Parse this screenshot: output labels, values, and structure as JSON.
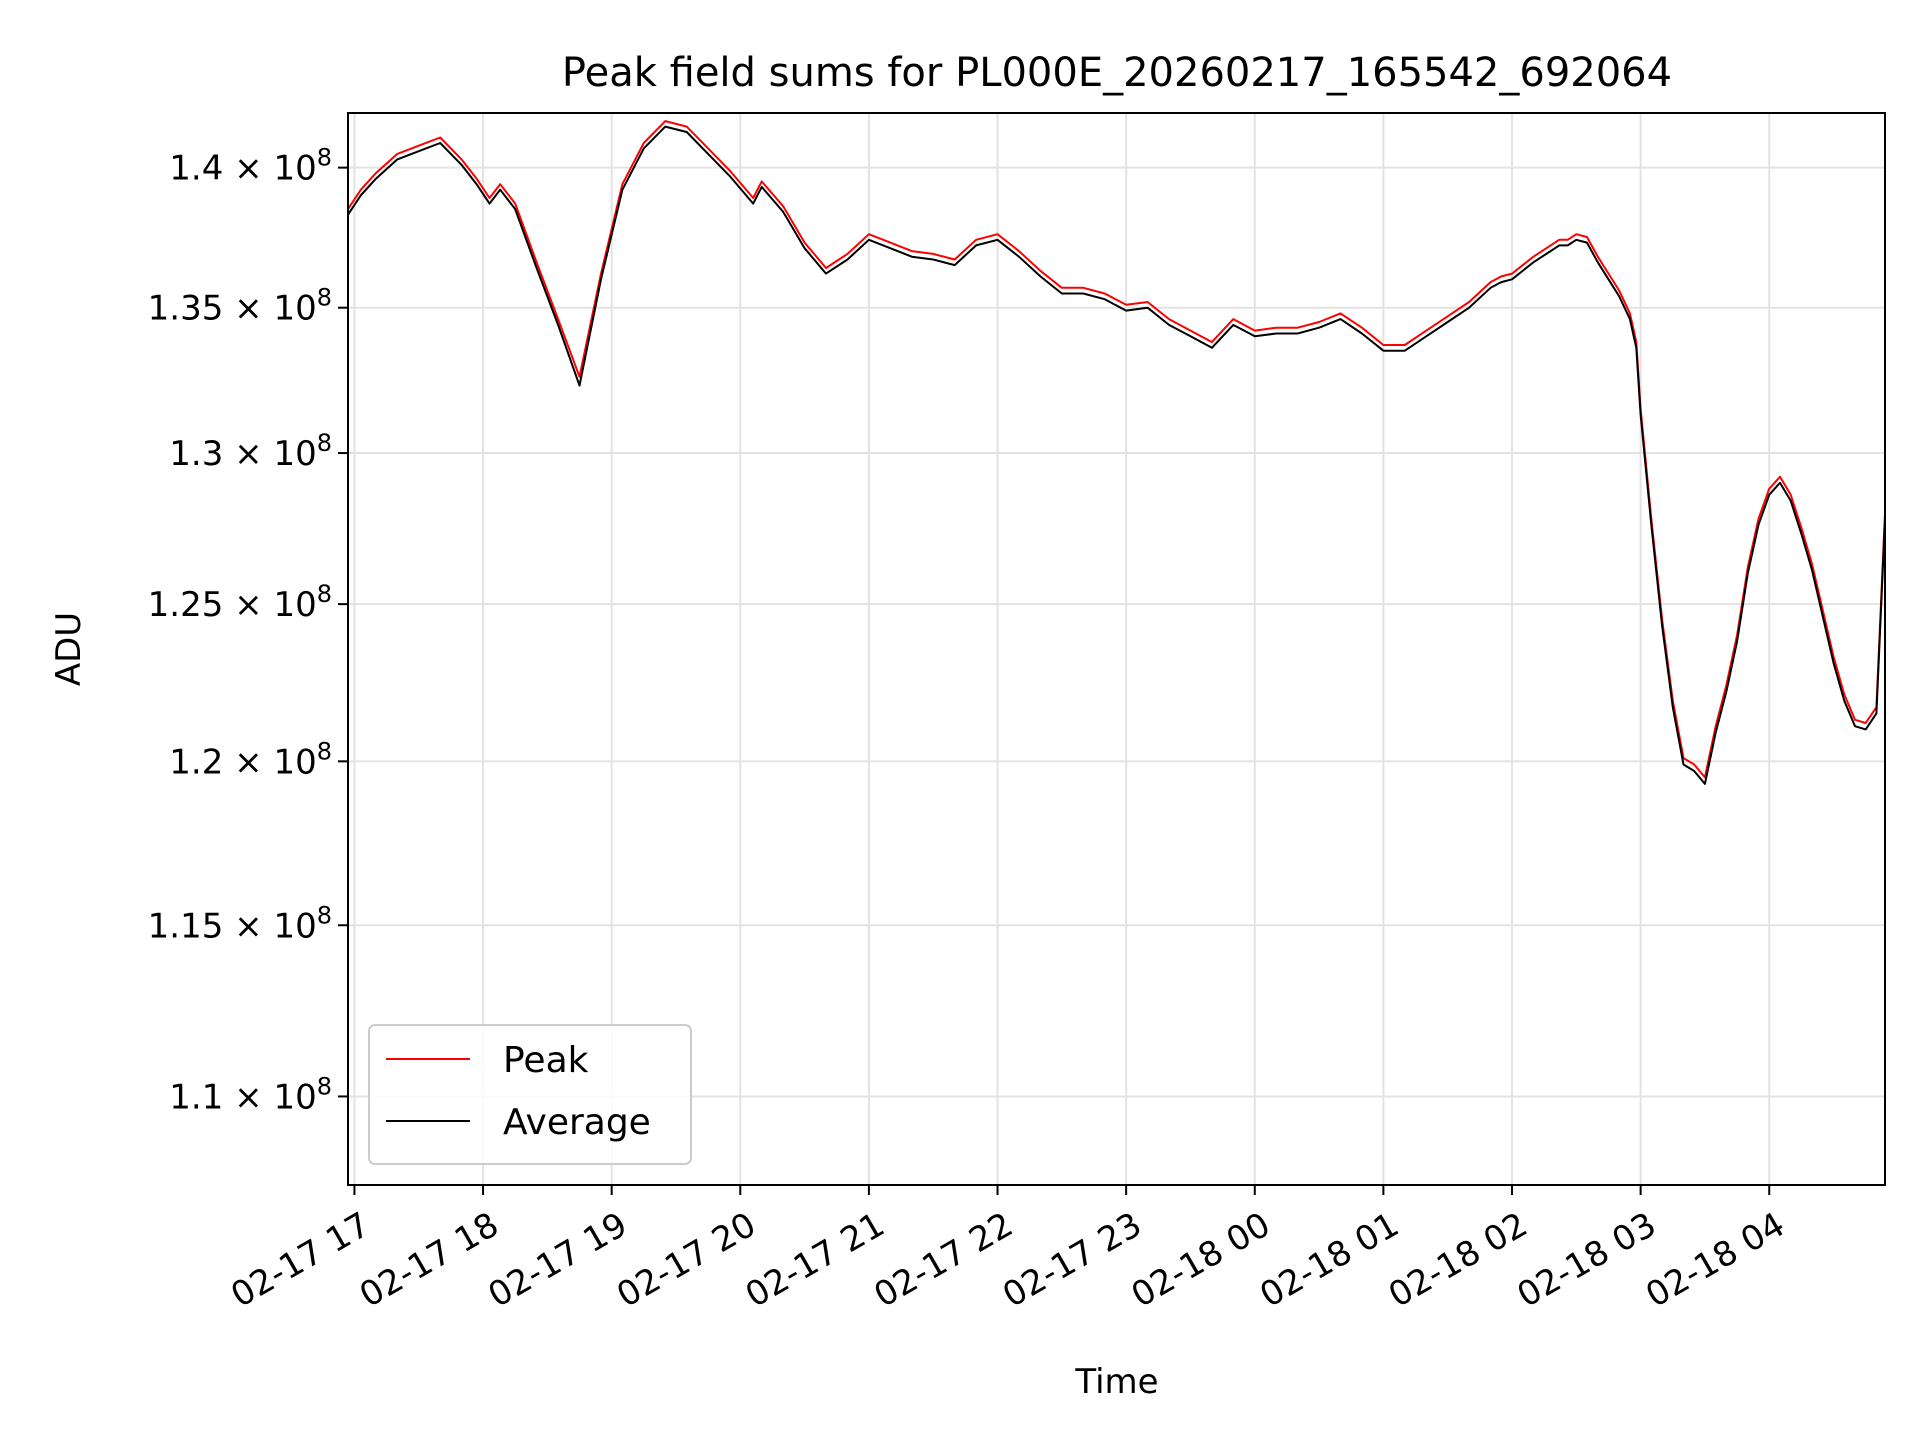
{
  "chart_data": {
    "type": "line",
    "title": "Peak field sums for PL000E_20260217_165542_692064",
    "xlabel": "Time",
    "ylabel": "ADU",
    "y_scale": "log",
    "ylim": [
      107500000,
      142000000
    ],
    "xlim": [
      "2026-02-17T16:57",
      "2026-02-18T04:54"
    ],
    "grid": true,
    "legend_position": "lower-left",
    "x_tick_labels": [
      "02-17 17",
      "02-17 18",
      "02-17 19",
      "02-17 20",
      "02-17 21",
      "02-17 22",
      "02-17 23",
      "02-18 00",
      "02-18 01",
      "02-18 02",
      "02-18 03",
      "02-18 04"
    ],
    "x_tick_times": [
      "2026-02-17T17:00",
      "2026-02-17T18:00",
      "2026-02-17T19:00",
      "2026-02-17T20:00",
      "2026-02-17T21:00",
      "2026-02-17T22:00",
      "2026-02-17T23:00",
      "2026-02-18T00:00",
      "2026-02-18T01:00",
      "2026-02-18T02:00",
      "2026-02-18T03:00",
      "2026-02-18T04:00"
    ],
    "y_ticks": [
      {
        "value": 140000000,
        "label": "1.4 × 10",
        "exp": "8"
      },
      {
        "value": 135000000,
        "label": "1.35 × 10",
        "exp": "8"
      },
      {
        "value": 130000000,
        "label": "1.3 × 10",
        "exp": "8"
      },
      {
        "value": 125000000,
        "label": "1.25 × 10",
        "exp": "8"
      },
      {
        "value": 120000000,
        "label": "1.2 × 10",
        "exp": "8"
      },
      {
        "value": 115000000,
        "label": "1.15 × 10",
        "exp": "8"
      },
      {
        "value": 110000000,
        "label": "1.1 × 10",
        "exp": "8"
      }
    ],
    "series": [
      {
        "name": "Peak",
        "color": "#ff0000",
        "x": [
          "2026-02-17T16:57",
          "2026-02-17T17:03",
          "2026-02-17T17:10",
          "2026-02-17T17:20",
          "2026-02-17T17:30",
          "2026-02-17T17:40",
          "2026-02-17T17:50",
          "2026-02-17T17:57",
          "2026-02-17T18:03",
          "2026-02-17T18:08",
          "2026-02-17T18:15",
          "2026-02-17T18:25",
          "2026-02-17T18:35",
          "2026-02-17T18:45",
          "2026-02-17T18:55",
          "2026-02-17T19:05",
          "2026-02-17T19:15",
          "2026-02-17T19:25",
          "2026-02-17T19:35",
          "2026-02-17T19:45",
          "2026-02-17T19:55",
          "2026-02-17T20:06",
          "2026-02-17T20:10",
          "2026-02-17T20:20",
          "2026-02-17T20:30",
          "2026-02-17T20:40",
          "2026-02-17T20:50",
          "2026-02-17T21:00",
          "2026-02-17T21:10",
          "2026-02-17T21:20",
          "2026-02-17T21:30",
          "2026-02-17T21:40",
          "2026-02-17T21:50",
          "2026-02-17T22:00",
          "2026-02-17T22:10",
          "2026-02-17T22:20",
          "2026-02-17T22:30",
          "2026-02-17T22:40",
          "2026-02-17T22:50",
          "2026-02-17T23:00",
          "2026-02-17T23:10",
          "2026-02-17T23:20",
          "2026-02-17T23:30",
          "2026-02-17T23:40",
          "2026-02-17T23:50",
          "2026-02-18T00:00",
          "2026-02-18T00:10",
          "2026-02-18T00:20",
          "2026-02-18T00:30",
          "2026-02-18T00:40",
          "2026-02-18T00:50",
          "2026-02-18T01:00",
          "2026-02-18T01:10",
          "2026-02-18T01:20",
          "2026-02-18T01:30",
          "2026-02-18T01:40",
          "2026-02-18T01:50",
          "2026-02-18T01:55",
          "2026-02-18T02:00",
          "2026-02-18T02:10",
          "2026-02-18T02:18",
          "2026-02-18T02:22",
          "2026-02-18T02:26",
          "2026-02-18T02:30",
          "2026-02-18T02:35",
          "2026-02-18T02:40",
          "2026-02-18T02:45",
          "2026-02-18T02:50",
          "2026-02-18T02:55",
          "2026-02-18T02:58",
          "2026-02-18T03:00",
          "2026-02-18T03:05",
          "2026-02-18T03:10",
          "2026-02-18T03:15",
          "2026-02-18T03:20",
          "2026-02-18T03:25",
          "2026-02-18T03:30",
          "2026-02-18T03:35",
          "2026-02-18T03:40",
          "2026-02-18T03:45",
          "2026-02-18T03:50",
          "2026-02-18T03:55",
          "2026-02-18T04:00",
          "2026-02-18T04:05",
          "2026-02-18T04:10",
          "2026-02-18T04:15",
          "2026-02-18T04:20",
          "2026-02-18T04:25",
          "2026-02-18T04:30",
          "2026-02-18T04:35",
          "2026-02-18T04:40",
          "2026-02-18T04:45",
          "2026-02-18T04:50",
          "2026-02-18T04:54"
        ],
        "values": [
          138500000,
          139200000,
          139800000,
          140500000,
          140800000,
          141100000,
          140300000,
          139600000,
          138900000,
          139400000,
          138700000,
          136600000,
          134600000,
          132600000,
          136200000,
          139400000,
          140900000,
          141700000,
          141500000,
          140700000,
          139900000,
          138900000,
          139500000,
          138600000,
          137300000,
          136400000,
          136900000,
          137600000,
          137300000,
          137000000,
          136900000,
          136700000,
          137400000,
          137600000,
          137000000,
          136300000,
          135700000,
          135700000,
          135500000,
          135100000,
          135200000,
          134600000,
          134200000,
          133800000,
          134600000,
          134200000,
          134300000,
          134300000,
          134500000,
          134800000,
          134300000,
          133700000,
          133700000,
          134200000,
          134700000,
          135200000,
          135900000,
          136100000,
          136200000,
          136800000,
          137200000,
          137400000,
          137400000,
          137600000,
          137500000,
          136800000,
          136200000,
          135600000,
          134800000,
          133800000,
          131500000,
          127800000,
          124500000,
          121900000,
          120100000,
          119900000,
          119500000,
          121100000,
          122400000,
          124000000,
          126200000,
          127800000,
          128800000,
          129200000,
          128600000,
          127500000,
          126300000,
          124800000,
          123300000,
          122100000,
          121300000,
          121200000,
          121700000,
          128000000
        ]
      },
      {
        "name": "Average",
        "color": "#000000",
        "x": [
          "2026-02-17T16:57",
          "2026-02-17T17:03",
          "2026-02-17T17:10",
          "2026-02-17T17:20",
          "2026-02-17T17:30",
          "2026-02-17T17:40",
          "2026-02-17T17:50",
          "2026-02-17T17:57",
          "2026-02-17T18:03",
          "2026-02-17T18:08",
          "2026-02-17T18:15",
          "2026-02-17T18:25",
          "2026-02-17T18:35",
          "2026-02-17T18:45",
          "2026-02-17T18:55",
          "2026-02-17T19:05",
          "2026-02-17T19:15",
          "2026-02-17T19:25",
          "2026-02-17T19:35",
          "2026-02-17T19:45",
          "2026-02-17T19:55",
          "2026-02-17T20:06",
          "2026-02-17T20:10",
          "2026-02-17T20:20",
          "2026-02-17T20:30",
          "2026-02-17T20:40",
          "2026-02-17T20:50",
          "2026-02-17T21:00",
          "2026-02-17T21:10",
          "2026-02-17T21:20",
          "2026-02-17T21:30",
          "2026-02-17T21:40",
          "2026-02-17T21:50",
          "2026-02-17T22:00",
          "2026-02-17T22:10",
          "2026-02-17T22:20",
          "2026-02-17T22:30",
          "2026-02-17T22:40",
          "2026-02-17T22:50",
          "2026-02-17T23:00",
          "2026-02-17T23:10",
          "2026-02-17T23:20",
          "2026-02-17T23:30",
          "2026-02-17T23:40",
          "2026-02-17T23:50",
          "2026-02-18T00:00",
          "2026-02-18T00:10",
          "2026-02-18T00:20",
          "2026-02-18T00:30",
          "2026-02-18T00:40",
          "2026-02-18T00:50",
          "2026-02-18T01:00",
          "2026-02-18T01:10",
          "2026-02-18T01:20",
          "2026-02-18T01:30",
          "2026-02-18T01:40",
          "2026-02-18T01:50",
          "2026-02-18T01:55",
          "2026-02-18T02:00",
          "2026-02-18T02:10",
          "2026-02-18T02:18",
          "2026-02-18T02:22",
          "2026-02-18T02:26",
          "2026-02-18T02:30",
          "2026-02-18T02:35",
          "2026-02-18T02:40",
          "2026-02-18T02:45",
          "2026-02-18T02:50",
          "2026-02-18T02:55",
          "2026-02-18T02:58",
          "2026-02-18T03:00",
          "2026-02-18T03:05",
          "2026-02-18T03:10",
          "2026-02-18T03:15",
          "2026-02-18T03:20",
          "2026-02-18T03:25",
          "2026-02-18T03:30",
          "2026-02-18T03:35",
          "2026-02-18T03:40",
          "2026-02-18T03:45",
          "2026-02-18T03:50",
          "2026-02-18T03:55",
          "2026-02-18T04:00",
          "2026-02-18T04:05",
          "2026-02-18T04:10",
          "2026-02-18T04:15",
          "2026-02-18T04:20",
          "2026-02-18T04:25",
          "2026-02-18T04:30",
          "2026-02-18T04:35",
          "2026-02-18T04:40",
          "2026-02-18T04:45",
          "2026-02-18T04:50",
          "2026-02-18T04:54"
        ],
        "values": [
          138300000,
          139000000,
          139600000,
          140300000,
          140600000,
          140900000,
          140100000,
          139400000,
          138700000,
          139200000,
          138500000,
          136400000,
          134400000,
          132300000,
          136000000,
          139200000,
          140700000,
          141500000,
          141300000,
          140500000,
          139700000,
          138700000,
          139300000,
          138400000,
          137100000,
          136200000,
          136700000,
          137400000,
          137100000,
          136800000,
          136700000,
          136500000,
          137200000,
          137400000,
          136800000,
          136100000,
          135500000,
          135500000,
          135300000,
          134900000,
          135000000,
          134400000,
          134000000,
          133600000,
          134400000,
          134000000,
          134100000,
          134100000,
          134300000,
          134600000,
          134100000,
          133500000,
          133500000,
          134000000,
          134500000,
          135000000,
          135700000,
          135900000,
          136000000,
          136600000,
          137000000,
          137200000,
          137200000,
          137400000,
          137300000,
          136600000,
          136000000,
          135400000,
          134600000,
          133600000,
          131300000,
          127600000,
          124300000,
          121700000,
          119900000,
          119700000,
          119300000,
          120900000,
          122200000,
          123800000,
          126000000,
          127600000,
          128600000,
          129000000,
          128400000,
          127300000,
          126100000,
          124600000,
          123100000,
          121900000,
          121100000,
          121000000,
          121500000,
          127800000
        ]
      }
    ]
  }
}
